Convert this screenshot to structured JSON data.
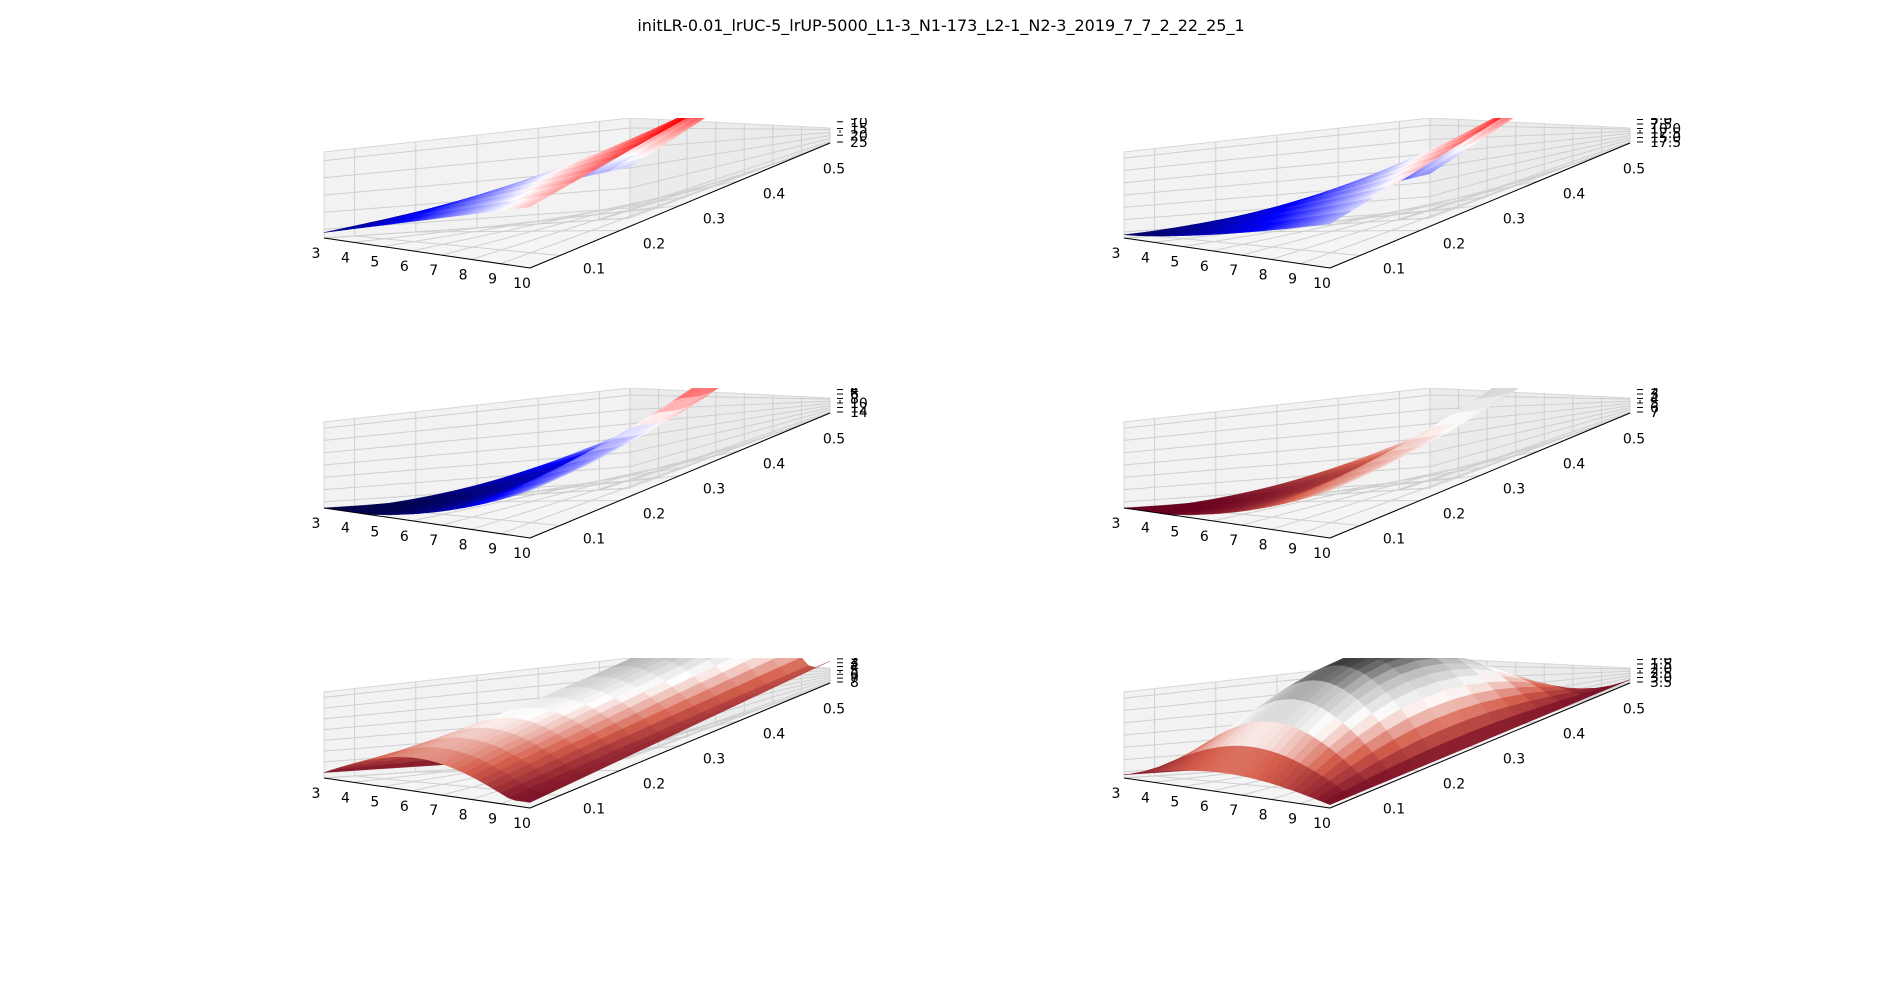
{
  "figure": {
    "title": "initLR-0.01_lrUC-5_lrUP-5000_L1-3_N1-173_L2-1_N2-3_2019_7_7_2_22_25_1"
  },
  "chart_data": [
    {
      "type": "surface3d",
      "colormap": "seismic",
      "x_ticks": [
        "3",
        "4",
        "5",
        "6",
        "7",
        "8",
        "9",
        "10"
      ],
      "y_ticks": [
        "0.1",
        "0.2",
        "0.3",
        "0.4",
        "0.5"
      ],
      "z_ticks": [
        "5",
        "10",
        "15",
        "20",
        "25"
      ],
      "xlim": [
        3,
        10
      ],
      "ylim": [
        0.05,
        0.55
      ],
      "zlim": [
        0,
        26
      ],
      "surface_shape": "plane",
      "z_range": [
        0.5,
        25.5
      ]
    },
    {
      "type": "surface3d",
      "colormap": "seismic",
      "x_ticks": [
        "3",
        "4",
        "5",
        "6",
        "7",
        "8",
        "9",
        "10"
      ],
      "y_ticks": [
        "0.1",
        "0.2",
        "0.3",
        "0.4",
        "0.5"
      ],
      "z_ticks": [
        "2.5",
        "5.0",
        "7.5",
        "10.0",
        "12.5",
        "15.0",
        "17.5"
      ],
      "xlim": [
        3,
        10
      ],
      "ylim": [
        0.05,
        0.55
      ],
      "zlim": [
        0,
        18.5
      ],
      "surface_shape": "curved_plane",
      "z_range": [
        0.3,
        18.3
      ]
    },
    {
      "type": "surface3d",
      "colormap": "seismic",
      "x_ticks": [
        "3",
        "4",
        "5",
        "6",
        "7",
        "8",
        "9",
        "10"
      ],
      "y_ticks": [
        "0.1",
        "0.2",
        "0.3",
        "0.4",
        "0.5"
      ],
      "z_ticks": [
        "2",
        "4",
        "6",
        "8",
        "10",
        "12",
        "14"
      ],
      "xlim": [
        3,
        10
      ],
      "ylim": [
        0.05,
        0.55
      ],
      "zlim": [
        0,
        15
      ],
      "surface_shape": "bowl",
      "z_range": [
        0.2,
        14.6
      ]
    },
    {
      "type": "surface3d",
      "colormap": "RdGy",
      "x_ticks": [
        "3",
        "4",
        "5",
        "6",
        "7",
        "8",
        "9",
        "10"
      ],
      "y_ticks": [
        "0.1",
        "0.2",
        "0.3",
        "0.4",
        "0.5"
      ],
      "z_ticks": [
        "1",
        "2",
        "3",
        "4",
        "5",
        "6",
        "7"
      ],
      "xlim": [
        3,
        10
      ],
      "ylim": [
        0.05,
        0.55
      ],
      "zlim": [
        0,
        7.8
      ],
      "surface_shape": "bowl",
      "z_range": [
        0.1,
        7.6
      ]
    },
    {
      "type": "surface3d",
      "colormap": "RdGy",
      "x_ticks": [
        "3",
        "4",
        "5",
        "6",
        "7",
        "8",
        "9",
        "10"
      ],
      "y_ticks": [
        "0.1",
        "0.2",
        "0.3",
        "0.4",
        "0.5"
      ],
      "z_ticks": [
        "1",
        "2",
        "3",
        "4",
        "5",
        "6",
        "7",
        "8"
      ],
      "xlim": [
        3,
        10
      ],
      "ylim": [
        0.05,
        0.55
      ],
      "zlim": [
        0,
        8.5
      ],
      "surface_shape": "arch",
      "z_range": [
        0.1,
        8.2
      ]
    },
    {
      "type": "surface3d",
      "colormap": "RdGy",
      "x_ticks": [
        "3",
        "4",
        "5",
        "6",
        "7",
        "8",
        "9",
        "10"
      ],
      "y_ticks": [
        "0.1",
        "0.2",
        "0.3",
        "0.4",
        "0.5"
      ],
      "z_ticks": [
        "0.5",
        "1.0",
        "1.5",
        "2.0",
        "2.5",
        "3.0",
        "3.5"
      ],
      "xlim": [
        3,
        10
      ],
      "ylim": [
        0.05,
        0.55
      ],
      "zlim": [
        0,
        3.7
      ],
      "surface_shape": "dome",
      "z_range": [
        0.05,
        3.6
      ]
    }
  ]
}
